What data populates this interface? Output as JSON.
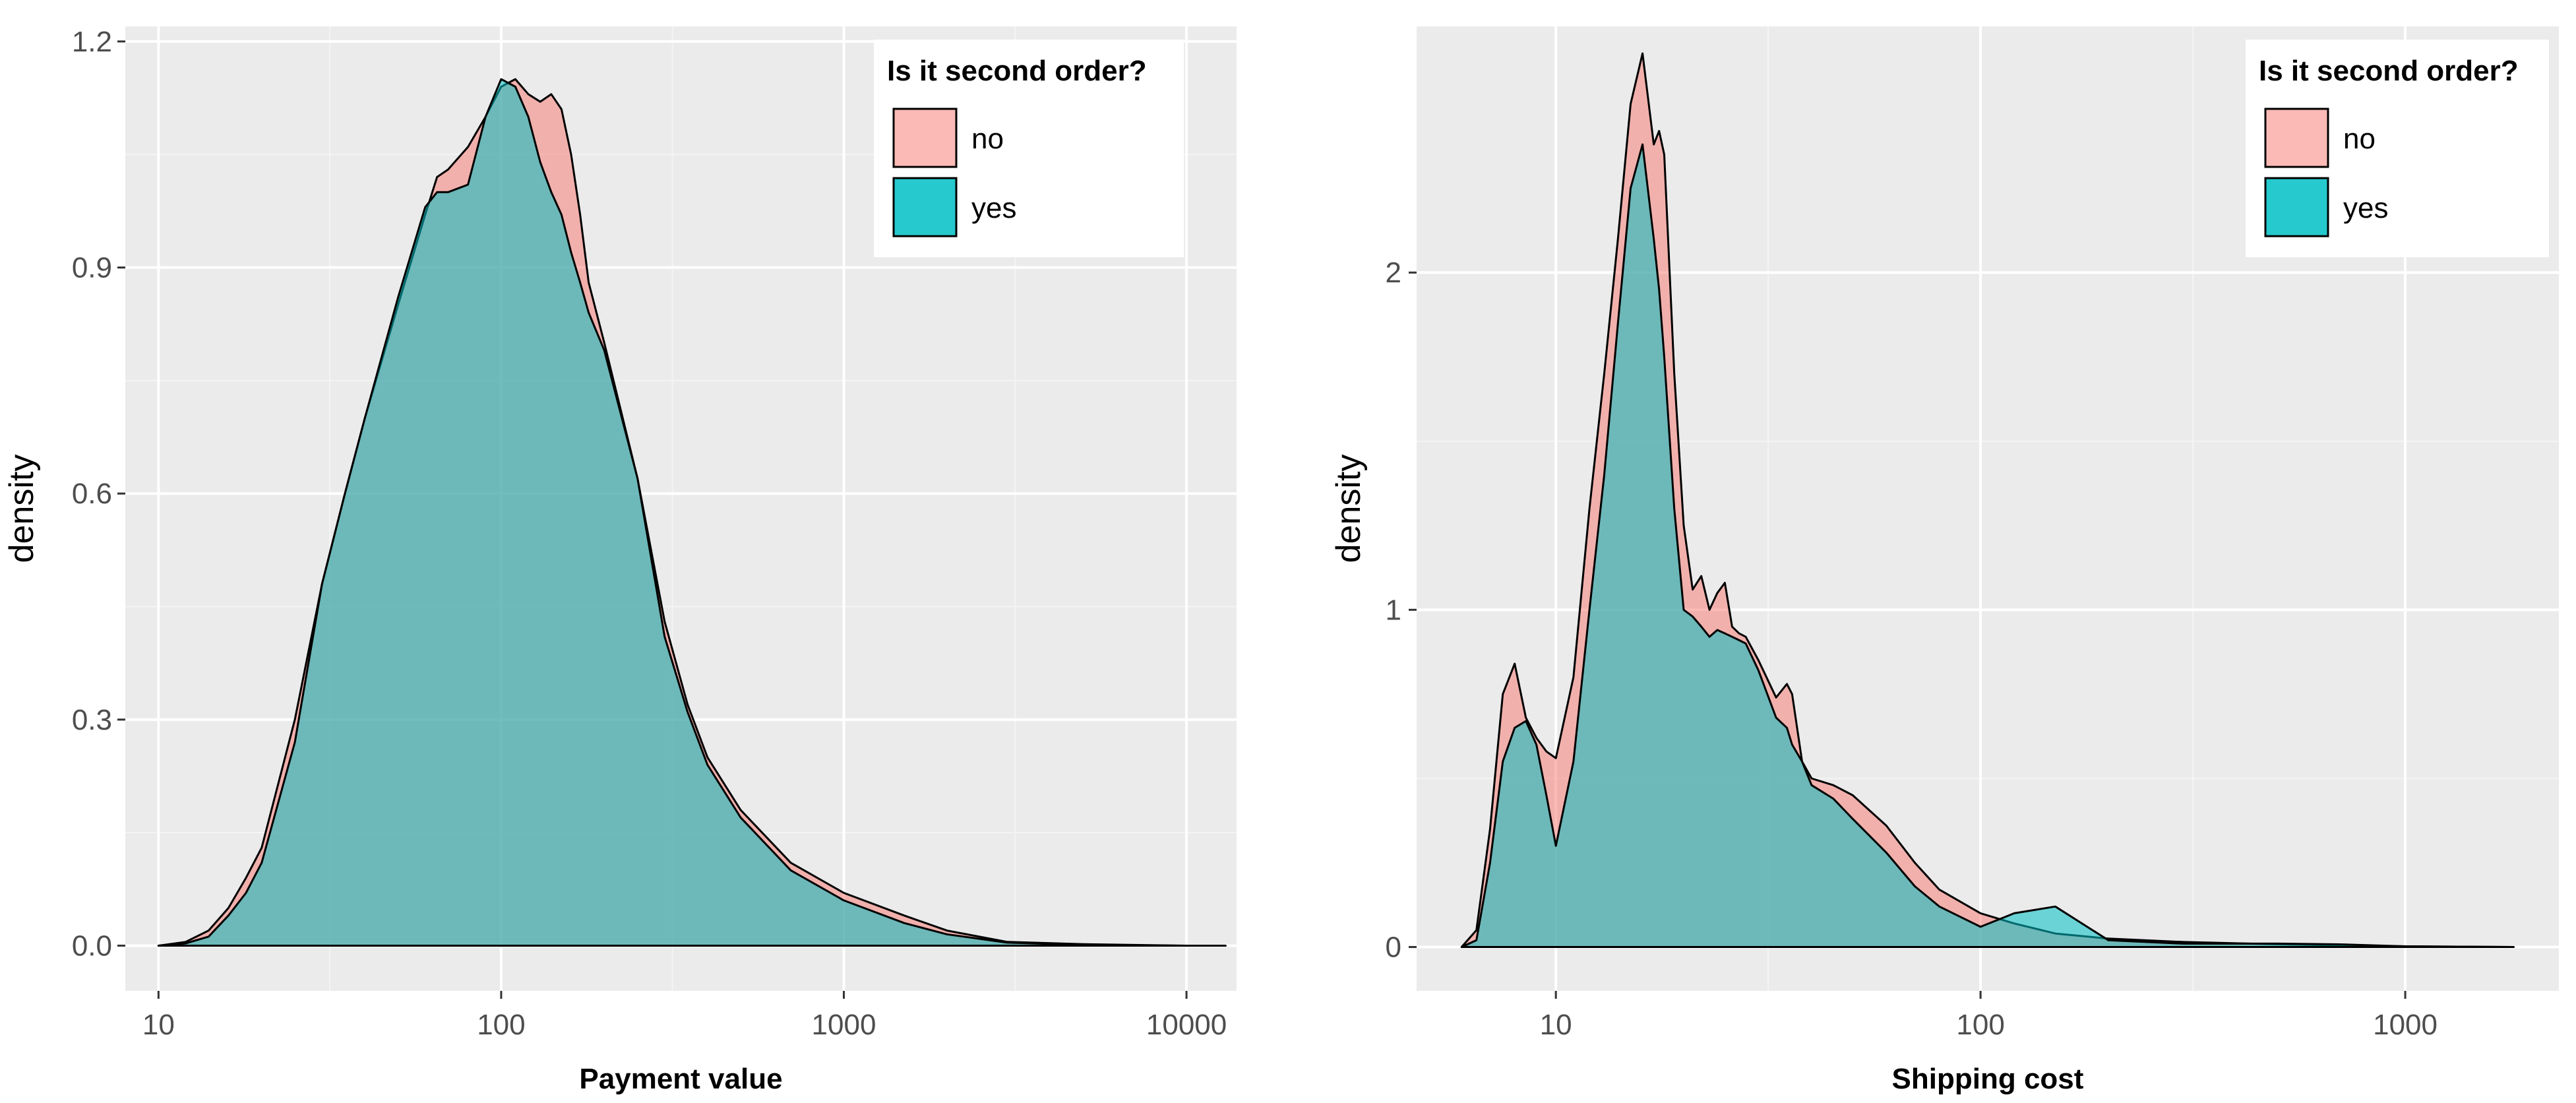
{
  "colors": {
    "panel": "#ebebeb",
    "grid_major": "#ffffff",
    "grid_minor": "#f4f4f4",
    "no_fill": "#f8766d",
    "yes_fill": "#00bfc4",
    "outline": "#000000"
  },
  "chart_data": [
    {
      "type": "area",
      "xscale": "log10",
      "xlabel": "Payment value",
      "ylabel": "density",
      "xlim": [
        8,
        14000
      ],
      "ylim": [
        -0.06,
        1.22
      ],
      "xticks": [
        10,
        100,
        1000,
        10000
      ],
      "xtick_labels": [
        "10",
        "100",
        "1000",
        "10000"
      ],
      "yticks": [
        0.0,
        0.3,
        0.6,
        0.9,
        1.2
      ],
      "ytick_labels": [
        "0.0",
        "0.3",
        "0.6",
        "0.9",
        "1.2"
      ],
      "grid": true,
      "legend": {
        "title": "Is it second order?",
        "position": "top-right",
        "entries": [
          "no",
          "yes"
        ]
      },
      "series": [
        {
          "name": "no",
          "x": [
            10,
            12,
            14,
            16,
            18,
            20,
            25,
            30,
            35,
            40,
            50,
            60,
            65,
            70,
            80,
            90,
            100,
            110,
            120,
            130,
            140,
            150,
            160,
            170,
            180,
            200,
            250,
            300,
            350,
            400,
            500,
            700,
            1000,
            1500,
            2000,
            3000,
            5000,
            10000,
            13000
          ],
          "y": [
            0.0,
            0.005,
            0.02,
            0.05,
            0.09,
            0.13,
            0.3,
            0.48,
            0.6,
            0.7,
            0.85,
            0.97,
            1.02,
            1.03,
            1.06,
            1.1,
            1.14,
            1.15,
            1.13,
            1.12,
            1.13,
            1.11,
            1.05,
            0.97,
            0.88,
            0.8,
            0.62,
            0.43,
            0.32,
            0.25,
            0.18,
            0.11,
            0.07,
            0.04,
            0.02,
            0.005,
            0.002,
            0.0,
            0.0
          ]
        },
        {
          "name": "yes",
          "x": [
            10,
            12,
            14,
            16,
            18,
            20,
            25,
            30,
            35,
            40,
            50,
            60,
            65,
            70,
            80,
            90,
            100,
            110,
            120,
            130,
            140,
            150,
            160,
            170,
            180,
            200,
            250,
            300,
            350,
            400,
            500,
            700,
            1000,
            1500,
            2000,
            3000,
            5000,
            10000,
            13000
          ],
          "y": [
            0.0,
            0.003,
            0.012,
            0.04,
            0.07,
            0.11,
            0.27,
            0.48,
            0.6,
            0.7,
            0.86,
            0.98,
            1.0,
            1.0,
            1.01,
            1.1,
            1.15,
            1.14,
            1.1,
            1.04,
            1.0,
            0.97,
            0.92,
            0.88,
            0.84,
            0.79,
            0.62,
            0.41,
            0.31,
            0.24,
            0.17,
            0.1,
            0.06,
            0.03,
            0.015,
            0.004,
            0.001,
            0.0,
            0.0
          ]
        }
      ]
    },
    {
      "type": "area",
      "xscale": "log10",
      "xlabel": "Shipping cost",
      "ylabel": "density",
      "xlim": [
        4.7,
        2300
      ],
      "ylim": [
        -0.13,
        2.73
      ],
      "xticks": [
        10,
        100,
        1000
      ],
      "xtick_labels": [
        "10",
        "100",
        "1000"
      ],
      "yticks": [
        0,
        1,
        2
      ],
      "ytick_labels": [
        "0",
        "1",
        "2"
      ],
      "grid": true,
      "legend": {
        "title": "Is it second order?",
        "position": "top-right",
        "entries": [
          "no",
          "yes"
        ]
      },
      "series": [
        {
          "name": "no",
          "x": [
            6,
            6.5,
            7,
            7.5,
            8,
            8.5,
            9,
            9.5,
            10,
            11,
            12,
            13,
            14,
            15,
            16,
            17,
            17.5,
            18,
            19,
            20,
            21,
            22,
            23,
            24,
            25,
            26,
            27,
            28,
            30,
            33,
            35,
            36,
            38,
            40,
            45,
            50,
            60,
            70,
            80,
            100,
            120,
            150,
            200,
            300,
            500,
            700,
            1000,
            1800
          ],
          "y": [
            0.0,
            0.05,
            0.35,
            0.75,
            0.84,
            0.68,
            0.62,
            0.58,
            0.56,
            0.8,
            1.3,
            1.7,
            2.1,
            2.5,
            2.65,
            2.38,
            2.42,
            2.35,
            1.7,
            1.25,
            1.06,
            1.1,
            1.0,
            1.05,
            1.08,
            0.95,
            0.93,
            0.92,
            0.85,
            0.74,
            0.78,
            0.75,
            0.55,
            0.5,
            0.48,
            0.45,
            0.36,
            0.25,
            0.17,
            0.1,
            0.07,
            0.04,
            0.025,
            0.015,
            0.008,
            0.005,
            0.002,
            0.0
          ]
        },
        {
          "name": "yes",
          "x": [
            6,
            6.5,
            7,
            7.5,
            8,
            8.5,
            9,
            9.5,
            10,
            11,
            12,
            13,
            14,
            15,
            16,
            17,
            17.5,
            18,
            19,
            20,
            21,
            22,
            23,
            24,
            25,
            26,
            27,
            28,
            30,
            33,
            35,
            36,
            38,
            40,
            45,
            50,
            60,
            70,
            80,
            100,
            120,
            150,
            200,
            300,
            500,
            700,
            1000,
            1800
          ],
          "y": [
            0.0,
            0.02,
            0.25,
            0.55,
            0.65,
            0.67,
            0.6,
            0.45,
            0.3,
            0.55,
            1.0,
            1.4,
            1.85,
            2.25,
            2.38,
            2.1,
            1.95,
            1.75,
            1.3,
            1.0,
            0.98,
            0.95,
            0.92,
            0.94,
            0.93,
            0.92,
            0.91,
            0.9,
            0.82,
            0.68,
            0.65,
            0.6,
            0.55,
            0.48,
            0.44,
            0.38,
            0.28,
            0.18,
            0.12,
            0.06,
            0.1,
            0.12,
            0.02,
            0.01,
            0.01,
            0.008,
            0.002,
            0.0
          ]
        }
      ]
    }
  ]
}
